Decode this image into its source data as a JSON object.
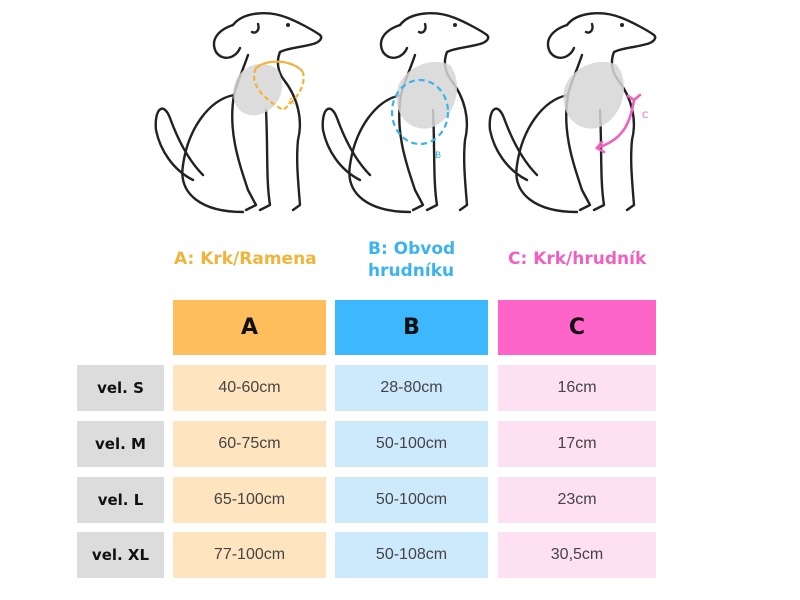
{
  "captions": {
    "a": "A: Krk/Ramena",
    "b_line1": "B: Obvod",
    "b_line2": "hrudníku",
    "c": "C: Krk/hrudník"
  },
  "table": {
    "headers": [
      "A",
      "B",
      "C"
    ],
    "rows": [
      {
        "label": "vel. S",
        "a": "40-60cm",
        "b": "28-80cm",
        "c": "16cm"
      },
      {
        "label": "vel. M",
        "a": "60-75cm",
        "b": "50-100cm",
        "c": "17cm"
      },
      {
        "label": "vel. L",
        "a": "65-100cm",
        "b": "50-100cm",
        "c": "23cm"
      },
      {
        "label": "vel. XL",
        "a": "77-100cm",
        "b": "50-108cm",
        "c": "30,5cm"
      }
    ]
  },
  "colors": {
    "a_header": "#ffbe5c",
    "a_cell": "#ffe4c0",
    "a_text": "#f0b43c",
    "b_header": "#3db8ff",
    "b_cell": "#cdeafd",
    "b_text": "#3ab3f0",
    "c_header": "#ff64c8",
    "c_cell": "#fde0f2",
    "c_text": "#f060c0",
    "label_bg": "#dcdcdc"
  },
  "marks": {
    "a": "A",
    "b": "B",
    "c": "C"
  }
}
